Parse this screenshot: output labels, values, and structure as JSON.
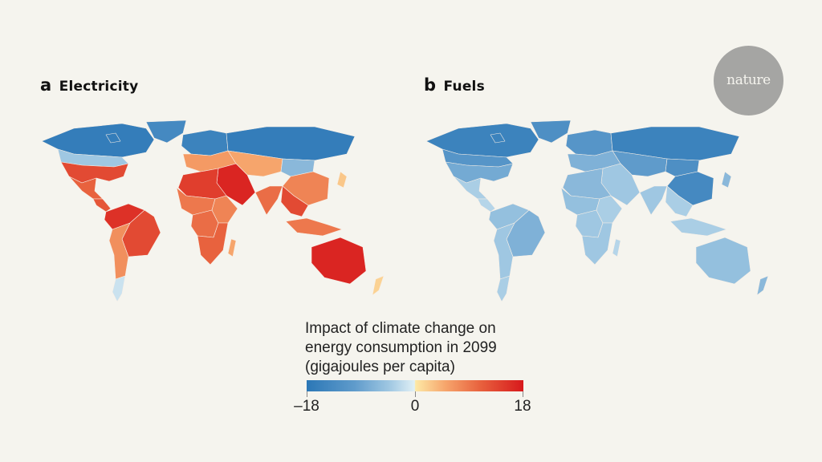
{
  "panels": [
    {
      "letter": "a",
      "title": "Electricity",
      "regions": {
        "canada": -17,
        "greenland": -15,
        "usa_north": -6,
        "usa_south": 14,
        "mexico": 12,
        "central_america": 13,
        "south_america_north": 16,
        "brazil": 14,
        "south_america_south": 8,
        "patagonia": -2,
        "europe_north": -16,
        "europe_south": 7,
        "russia": -17,
        "central_asia": 6,
        "mongolia": -8,
        "china": 9,
        "middle_east": 17,
        "north_africa": 15,
        "west_africa": 10,
        "central_africa": 11,
        "east_africa": 9,
        "southern_africa": 12,
        "madagascar": 6,
        "india": 11,
        "southeast_asia": 14,
        "indonesia": 10,
        "japan": 3,
        "australia": 17,
        "new_zealand": 2
      }
    },
    {
      "letter": "b",
      "title": "Fuels",
      "regions": {
        "canada": -16,
        "greenland": -14,
        "usa_north": -13,
        "usa_south": -10,
        "mexico": -5,
        "central_america": -4,
        "south_america_north": -7,
        "brazil": -9,
        "south_america_south": -6,
        "patagonia": -5,
        "europe_north": -13,
        "europe_south": -9,
        "russia": -16,
        "central_asia": -12,
        "mongolia": -14,
        "china": -15,
        "middle_east": -6,
        "north_africa": -8,
        "west_africa": -7,
        "central_africa": -6,
        "east_africa": -5,
        "southern_africa": -6,
        "madagascar": -4,
        "india": -6,
        "southeast_asia": -5,
        "indonesia": -5,
        "japan": -8,
        "australia": -7,
        "new_zealand": -8
      }
    }
  ],
  "legend": {
    "title_lines": [
      "Impact of climate change on",
      "energy consumption in 2099",
      "(gigajoules per capita)"
    ],
    "min": -18,
    "mid": 0,
    "max": 18,
    "tick_labels": [
      "–18",
      "0",
      "18"
    ],
    "colors": [
      "#2b77b6",
      "#5f9bcb",
      "#9fc7e2",
      "#e0f0f6",
      "#fde9a6",
      "#f6a56c",
      "#e8623e",
      "#d7191c"
    ]
  },
  "logo": {
    "text": "nature",
    "color": "#a5a5a3"
  }
}
